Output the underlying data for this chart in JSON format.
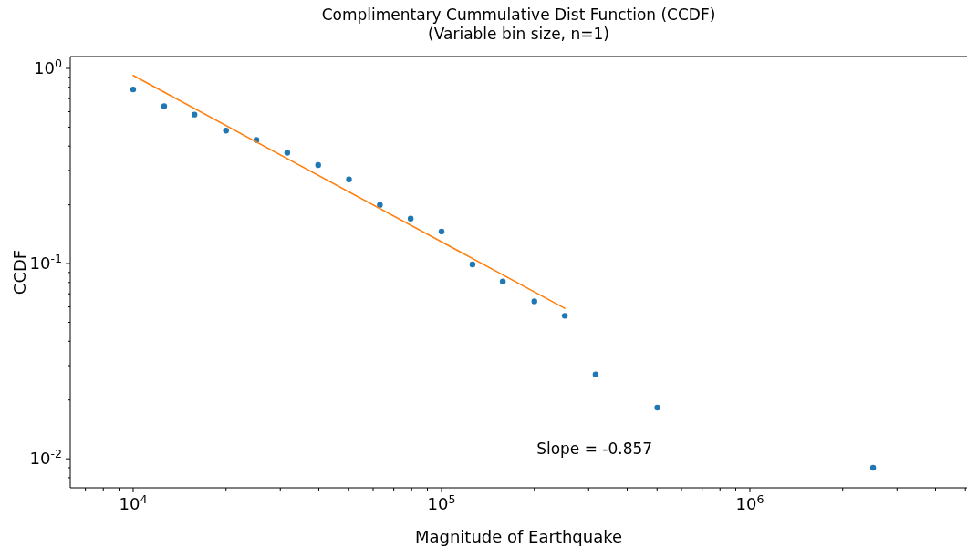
{
  "chart_data": {
    "type": "scatter",
    "title": "Complimentary Cummulative Dist Function (CCDF)\n(Variable bin size, n=1)",
    "xlabel": "Magnitude of Earthquake",
    "ylabel": "CCDF",
    "log": "xy",
    "marker": "circle",
    "grid": false,
    "series": [
      {
        "color": "#1f77b4",
        "x": [
          10000,
          12600,
          15800,
          20000,
          25100,
          31600,
          39800,
          50100,
          63100,
          79400,
          100000,
          126000,
          158000,
          200000,
          251000,
          316000,
          501000,
          2510000
        ],
        "values": [
          0.78,
          0.64,
          0.58,
          0.48,
          0.43,
          0.37,
          0.32,
          0.27,
          0.2,
          0.17,
          0.146,
          0.099,
          0.081,
          0.064,
          0.054,
          0.027,
          0.0183,
          0.009
        ]
      },
      {
        "type": "line",
        "marker": "none",
        "color": "#ff7f0e",
        "x": [
          10000,
          251000
        ],
        "values": [
          0.92,
          0.059
        ]
      }
    ],
    "annotations": [
      "Slope = -0.857"
    ],
    "xlim": [
      6250,
      5060000
    ],
    "ylim": [
      0.0071,
      1.15
    ],
    "xticks": [
      {
        "value": 10000,
        "label": "10$^{4}$"
      },
      {
        "value": 100000,
        "label": "10$^{5}$"
      },
      {
        "value": 1000000,
        "label": "10$^{6}$"
      },
      {
        "value": 7000,
        "label": null
      },
      {
        "value": 8000,
        "label": null
      },
      {
        "value": 9000,
        "label": null
      },
      {
        "value": 20000,
        "label": null
      },
      {
        "value": 30000,
        "label": null
      },
      {
        "value": 40000,
        "label": null
      },
      {
        "value": 50000,
        "label": null
      },
      {
        "value": 60000,
        "label": null
      },
      {
        "value": 70000,
        "label": null
      },
      {
        "value": 80000,
        "label": null
      },
      {
        "value": 90000,
        "label": null
      },
      {
        "value": 200000,
        "label": null
      },
      {
        "value": 300000,
        "label": null
      },
      {
        "value": 400000,
        "label": null
      },
      {
        "value": 500000,
        "label": null
      },
      {
        "value": 600000,
        "label": null
      },
      {
        "value": 700000,
        "label": null
      },
      {
        "value": 800000,
        "label": null
      },
      {
        "value": 900000,
        "label": null
      },
      {
        "value": 2000000,
        "label": null
      },
      {
        "value": 3000000,
        "label": null
      },
      {
        "value": 4000000,
        "label": null
      },
      {
        "value": 5000000,
        "label": null
      }
    ],
    "yticks": [
      {
        "value": 1,
        "label": "10$^{0}$"
      },
      {
        "value": 0.1,
        "label": "10$^{-1}$"
      },
      {
        "value": 0.01,
        "label": "10$^{-2}$"
      },
      {
        "value": 0.008,
        "label": null
      },
      {
        "value": 0.009,
        "label": null
      },
      {
        "value": 0.02,
        "label": null
      },
      {
        "value": 0.03,
        "label": null
      },
      {
        "value": 0.04,
        "label": null
      },
      {
        "value": 0.05,
        "label": null
      },
      {
        "value": 0.06,
        "label": null
      },
      {
        "value": 0.07,
        "label": null
      },
      {
        "value": 0.08,
        "label": null
      },
      {
        "value": 0.09,
        "label": null
      },
      {
        "value": 0.2,
        "label": null
      },
      {
        "value": 0.3,
        "label": null
      },
      {
        "value": 0.4,
        "label": null
      },
      {
        "value": 0.5,
        "label": null
      },
      {
        "value": 0.6,
        "label": null
      },
      {
        "value": 0.7,
        "label": null
      },
      {
        "value": 0.8,
        "label": null
      },
      {
        "value": 0.9,
        "label": null
      }
    ]
  }
}
